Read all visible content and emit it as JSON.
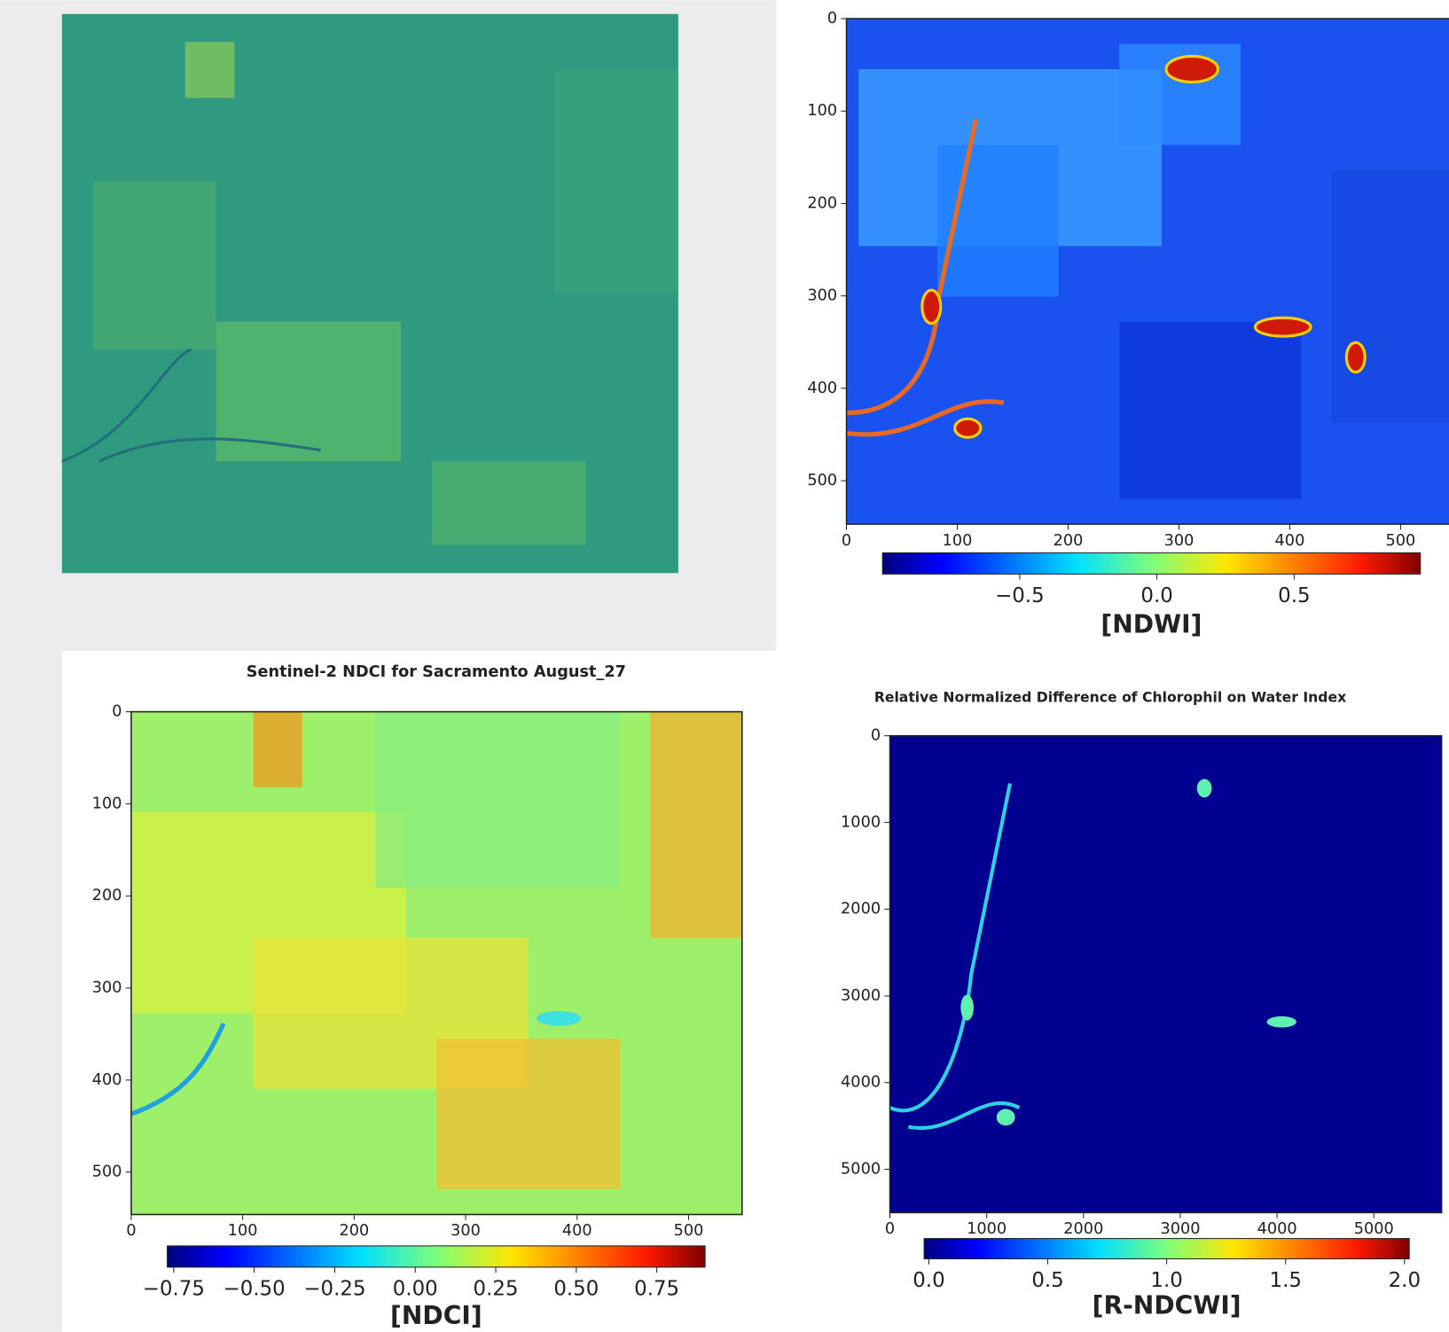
{
  "chart_data": [
    {
      "type": "image",
      "colormap": "viridis"
    },
    {
      "type": "image",
      "colormap": "jet",
      "xlim": [
        0,
        547
      ],
      "ylim": [
        0,
        547
      ],
      "xticks": [
        0,
        100,
        200,
        300,
        400,
        500
      ],
      "yticks": [
        0,
        100,
        200,
        300,
        400,
        500
      ],
      "colorbar": {
        "label": "[NDWI]",
        "lim": [
          -1,
          0.96
        ],
        "ticks": [
          {
            "value": -0.5,
            "label": "−0.5"
          },
          {
            "value": 0,
            "label": "0.0"
          },
          {
            "value": 0.5,
            "label": "0.5"
          }
        ]
      }
    },
    {
      "type": "image",
      "colormap": "jet",
      "title": "Sentinel-2 NDCI for Sacramento August_27",
      "xlim": [
        0,
        548
      ],
      "ylim": [
        0,
        546
      ],
      "xticks": [
        0,
        100,
        200,
        300,
        400,
        500
      ],
      "yticks": [
        0,
        100,
        200,
        300,
        400,
        500
      ],
      "colorbar": {
        "label": "[NDCI]",
        "lim": [
          -0.77,
          0.9
        ],
        "ticks": [
          {
            "value": -0.75,
            "label": "−0.75"
          },
          {
            "value": -0.5,
            "label": "−0.50"
          },
          {
            "value": -0.25,
            "label": "−0.25"
          },
          {
            "value": 0,
            "label": "0.00"
          },
          {
            "value": 0.25,
            "label": "0.25"
          },
          {
            "value": 0.5,
            "label": "0.50"
          },
          {
            "value": 0.75,
            "label": "0.75"
          }
        ]
      }
    },
    {
      "type": "image",
      "colormap": "jet",
      "title": "Relative Normalized Difference of Chlorophil on Water Index",
      "xlim": [
        0,
        5700
      ],
      "ylim": [
        0,
        5500
      ],
      "xticks": [
        0,
        1000,
        2000,
        3000,
        4000,
        5000
      ],
      "yticks": [
        0,
        1000,
        2000,
        3000,
        4000,
        5000
      ],
      "colorbar": {
        "label": "[R-NDCWI]",
        "lim": [
          -0.02,
          2.02
        ],
        "ticks": [
          {
            "value": 0,
            "label": "0.0"
          },
          {
            "value": 0.5,
            "label": "0.5"
          },
          {
            "value": 1,
            "label": "1.0"
          },
          {
            "value": 1.5,
            "label": "1.5"
          },
          {
            "value": 2,
            "label": "2.0"
          }
        ]
      }
    }
  ]
}
